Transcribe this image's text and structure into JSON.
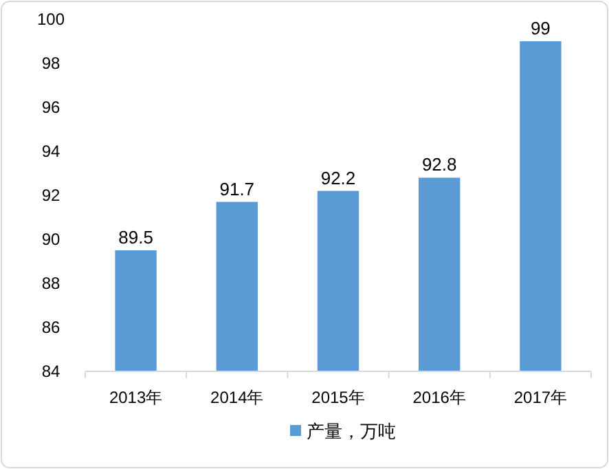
{
  "chart_data": {
    "type": "bar",
    "categories": [
      "2013年",
      "2014年",
      "2015年",
      "2016年",
      "2017年"
    ],
    "series": [
      {
        "name": "产量，万吨",
        "color": "#5b9bd5",
        "values": [
          89.5,
          91.7,
          92.2,
          92.8,
          99
        ]
      }
    ],
    "ylim": [
      84,
      100
    ],
    "yticks": [
      84,
      86,
      88,
      90,
      92,
      94,
      96,
      98,
      100
    ],
    "data_labels": true,
    "legend": "bottom"
  }
}
